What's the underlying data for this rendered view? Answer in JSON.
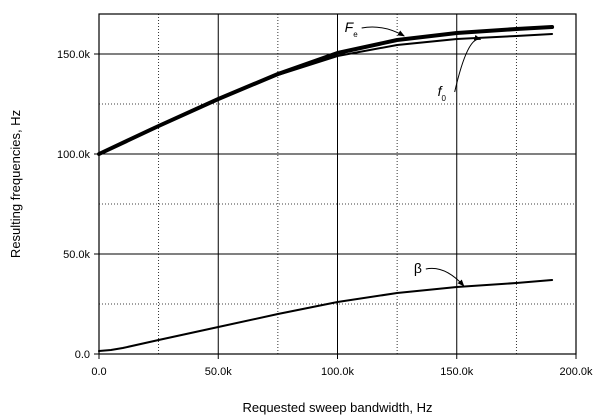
{
  "chart_data": {
    "type": "line",
    "xlabel": "Requested sweep bandwidth, Hz",
    "ylabel": "Resulting frequencies, Hz",
    "xlim": [
      0,
      200000
    ],
    "ylim": [
      0,
      170000
    ],
    "x_ticks": [
      0,
      50000,
      100000,
      150000,
      200000
    ],
    "x_tick_labels": [
      "0.0",
      "50.0k",
      "100.0k",
      "150.0k",
      "200.0k"
    ],
    "y_ticks": [
      0,
      50000,
      100000,
      150000
    ],
    "y_tick_labels": [
      "0.0",
      "50.0k",
      "100.0k",
      "150.0k"
    ],
    "grid": {
      "major_solid": true,
      "minor_dotted_x": [
        25000,
        75000,
        125000,
        175000
      ],
      "minor_dotted_y": [
        25000,
        75000,
        125000
      ]
    },
    "series": [
      {
        "name": "F_e",
        "label_main": "F",
        "label_sub": "e",
        "stroke": 4,
        "x": [
          0,
          25000,
          50000,
          75000,
          100000,
          125000,
          150000,
          175000,
          190000
        ],
        "y": [
          100000,
          114000,
          127500,
          140000,
          150500,
          157000,
          160500,
          162500,
          163500
        ]
      },
      {
        "name": "f_0",
        "label_main": "f",
        "label_sub": "0",
        "stroke": 2,
        "x": [
          0,
          25000,
          50000,
          75000,
          100000,
          125000,
          150000,
          175000,
          190000
        ],
        "y": [
          100000,
          114000,
          127500,
          139500,
          149000,
          154500,
          157500,
          159000,
          160000
        ]
      },
      {
        "name": "β",
        "label_main": "β",
        "label_sub": "",
        "stroke": 2,
        "x": [
          0,
          5000,
          10000,
          25000,
          50000,
          75000,
          100000,
          125000,
          150000,
          175000,
          190000
        ],
        "y": [
          1500,
          2000,
          3000,
          7000,
          13500,
          20000,
          26000,
          30500,
          33500,
          35500,
          37000
        ]
      }
    ],
    "annotations": [
      {
        "series": "F_e",
        "text_x": 103000,
        "text_y": 161000,
        "arrow_to_x": 128000,
        "arrow_to_y": 159000
      },
      {
        "series": "f_0",
        "text_x": 142000,
        "text_y": 129000,
        "arrow_to_x": 160000,
        "arrow_to_y": 157300
      },
      {
        "series": "β",
        "text_x": 132000,
        "text_y": 40500,
        "arrow_to_x": 153000,
        "arrow_to_y": 34000
      }
    ]
  }
}
